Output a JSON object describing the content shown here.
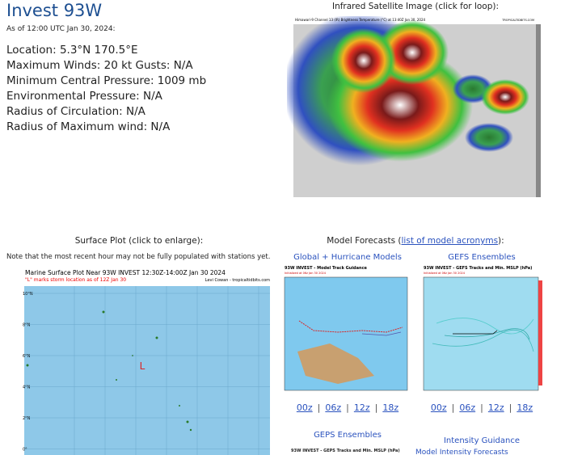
{
  "header": {
    "title": "Invest 93W",
    "timestamp": "As of 12:00 UTC Jan 30, 2024:",
    "details": [
      "Location: 5.3°N 170.5°E",
      "Maximum Winds: 20 kt  Gusts: N/A",
      "Minimum Central Pressure: 1009 mb",
      "Environmental Pressure: N/A",
      "Radius of Circulation: N/A",
      "Radius of Maximum wind: N/A"
    ]
  },
  "satellite": {
    "heading": "Infrared Satellite Image (click for loop):",
    "image_title": "Himawari-9 Channel 13 (IR) Brightness Temperature (°C) at 13:40Z Jan 30, 2024",
    "image_credit": "TROPICALTIDBITS.COM"
  },
  "surface": {
    "heading": "Surface Plot (click to enlarge):",
    "note": "Note that the most recent hour may not be fully populated with stations yet.",
    "image_title": "Marine Surface Plot Near 93W INVEST 12:30Z-14:00Z Jan 30 2024",
    "image_subtitle": "\"L\" marks storm location as of 12Z Jan 30",
    "image_credit": "Levi Cowan - tropicaltidbits.com",
    "lat_labels": [
      "10°N",
      "8°N",
      "6°N",
      "4°N",
      "2°N",
      "0°"
    ],
    "storm_marker": "L"
  },
  "models": {
    "heading_prefix": "Model Forecasts (",
    "heading_link": "list of model acronyms",
    "heading_suffix": "):",
    "separator": "|",
    "panels": [
      {
        "title": "Global + Hurricane Models",
        "image_title": "93W INVEST - Model Track Guidance",
        "image_subtitle": "Initialized at 06z Jan 30 2024",
        "links": [
          "00z",
          "06z",
          "12z",
          "18z"
        ]
      },
      {
        "title": "GEFS Ensembles",
        "image_title": "93W INVEST - GEFS Tracks and Min. MSLP (hPa)",
        "image_subtitle": "Initialized at 06z Jan 30 2024",
        "links": [
          "00z",
          "06z",
          "12z",
          "18z"
        ]
      }
    ],
    "more": [
      {
        "title": "GEPS Ensembles",
        "image_title": "93W INVEST - GEPS Tracks and Min. MSLP (hPa)"
      },
      {
        "title": "Intensity Guidance",
        "image_title": "Model Intensity Forecasts"
      }
    ]
  }
}
